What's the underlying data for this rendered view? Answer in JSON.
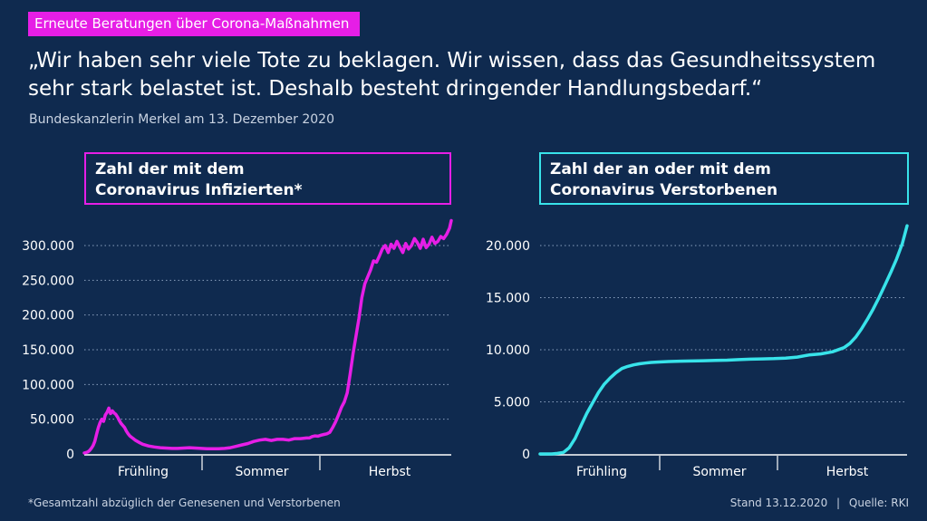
{
  "header": {
    "tag": "Erneute Beratungen über Corona-Maßnahmen",
    "quote": "„Wir haben sehr viele Tote zu beklagen. Wir wissen, dass das Gesundheitssystem sehr stark belastet ist. Deshalb besteht dringender Handlungsbedarf.“",
    "source_line": "Bundeskanzlerin Merkel am 13. Dezember 2020"
  },
  "footer": {
    "footnote": "*Gesamtzahl abzüglich der Genesenen und Verstorbenen",
    "stand": "Stand 13.12.2020",
    "separator": "|",
    "quelle": "Quelle: RKI"
  },
  "colors": {
    "background": "#0f2a4f",
    "infected": "#e61ee6",
    "deaths": "#38e3ea"
  },
  "chart_data": [
    {
      "type": "line",
      "title_lines": [
        "Zahl der mit dem",
        "Coronavirus Infizierten*"
      ],
      "categories": [
        "Frühling",
        "Sommer",
        "Herbst"
      ],
      "yticks": [
        0,
        50000,
        100000,
        150000,
        200000,
        250000,
        300000
      ],
      "ytick_labels": [
        "0",
        "50.000",
        "100.000",
        "150.000",
        "200.000",
        "250.000",
        "300.000"
      ],
      "ylim": [
        0,
        300000
      ],
      "grid": true,
      "color": "#e61ee6",
      "x": [
        0,
        3,
        6,
        9,
        12,
        15,
        18,
        21,
        24,
        27,
        30,
        33,
        36,
        39,
        42,
        45,
        48,
        51,
        54,
        57,
        60,
        63,
        66,
        69,
        72,
        75,
        78,
        81,
        84,
        87,
        90,
        95,
        100,
        110,
        120,
        130,
        140,
        150,
        160,
        170,
        180,
        190,
        200,
        210,
        220,
        230,
        240,
        250,
        260,
        270,
        280,
        290,
        300,
        310,
        320,
        330,
        340,
        350,
        360,
        370,
        380,
        385,
        390,
        395,
        400,
        405,
        410,
        415,
        420,
        425,
        430,
        435,
        440,
        445,
        450,
        455,
        460,
        465,
        470,
        475,
        480,
        485,
        490,
        495,
        500,
        505,
        510,
        515,
        520,
        525,
        530,
        535,
        540,
        545,
        550,
        555,
        560,
        565,
        570,
        575,
        580,
        585,
        590,
        595,
        600,
        605,
        610,
        615,
        620,
        625,
        628
      ],
      "values": [
        1500,
        2000,
        3000,
        5000,
        8000,
        12000,
        18000,
        28000,
        38000,
        45000,
        50000,
        47000,
        56000,
        60000,
        66000,
        58000,
        62000,
        59000,
        57000,
        53000,
        48000,
        44000,
        41000,
        38000,
        33000,
        29000,
        26000,
        24000,
        22000,
        20000,
        18500,
        16000,
        14000,
        11500,
        10000,
        9000,
        8500,
        8000,
        8000,
        8500,
        9000,
        8500,
        8000,
        7500,
        7500,
        7500,
        8000,
        9000,
        11000,
        13000,
        15000,
        18000,
        20000,
        21000,
        19500,
        21000,
        21000,
        20000,
        22000,
        22000,
        23000,
        23000,
        25000,
        26000,
        25500,
        27000,
        28000,
        29000,
        31000,
        38000,
        46000,
        56000,
        67000,
        75000,
        88000,
        115000,
        145000,
        170000,
        195000,
        225000,
        245000,
        255000,
        265000,
        278000,
        276000,
        285000,
        295000,
        300000,
        290000,
        302000,
        296000,
        306000,
        298000,
        290000,
        303000,
        295000,
        300000,
        310000,
        304000,
        296000,
        309000,
        297000,
        302000,
        312000,
        303000,
        306000,
        313000,
        310000,
        316000,
        325000,
        336000
      ]
    },
    {
      "type": "line",
      "title_lines": [
        "Zahl der an oder mit dem",
        "Coronavirus Verstorbenen"
      ],
      "categories": [
        "Frühling",
        "Sommer",
        "Herbst"
      ],
      "yticks": [
        0,
        5000,
        10000,
        15000,
        20000
      ],
      "ytick_labels": [
        "0",
        "5.000",
        "10.000",
        "15.000",
        "20.000"
      ],
      "ylim": [
        0,
        20000
      ],
      "grid": true,
      "color": "#38e3ea",
      "x": [
        0,
        10,
        20,
        30,
        40,
        50,
        60,
        70,
        80,
        90,
        100,
        110,
        120,
        130,
        140,
        150,
        160,
        170,
        180,
        190,
        200,
        220,
        240,
        260,
        280,
        300,
        320,
        340,
        360,
        380,
        400,
        420,
        440,
        460,
        480,
        500,
        520,
        530,
        540,
        550,
        560,
        570,
        580,
        590,
        600,
        610,
        620,
        628
      ],
      "values": [
        0,
        0,
        0,
        50,
        150,
        600,
        1500,
        2700,
        3900,
        4900,
        5900,
        6700,
        7300,
        7800,
        8200,
        8400,
        8550,
        8650,
        8720,
        8780,
        8820,
        8870,
        8900,
        8920,
        8950,
        8980,
        9000,
        9050,
        9100,
        9120,
        9150,
        9200,
        9300,
        9500,
        9600,
        9800,
        10200,
        10600,
        11200,
        12000,
        12900,
        13900,
        15000,
        16200,
        17400,
        18700,
        20200,
        21900
      ]
    }
  ]
}
